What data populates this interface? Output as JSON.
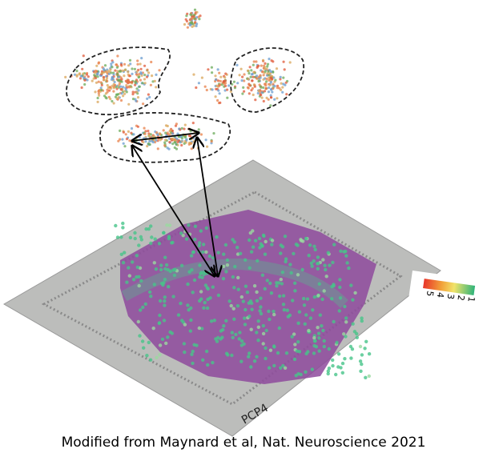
{
  "slide_label": "PCP4",
  "color_scale": {
    "ticks": [
      "5",
      "4",
      "3",
      "2",
      "1"
    ]
  },
  "caption": "Modified from Maynard et al, Nat. Neuroscience 2021"
}
